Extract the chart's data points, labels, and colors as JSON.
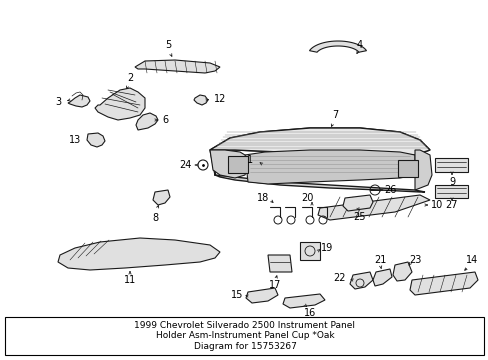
{
  "title": "1999 Chevrolet Silverado 2500 Instrument Panel\nHolder Asm-Instrument Panel Cup *Oak\nDiagram for 15753267",
  "bg_color": "#ffffff",
  "line_color": "#1a1a1a",
  "title_fontsize": 6.5,
  "fig_width": 4.89,
  "fig_height": 3.6,
  "dpi": 100,
  "border_color": "#000000"
}
